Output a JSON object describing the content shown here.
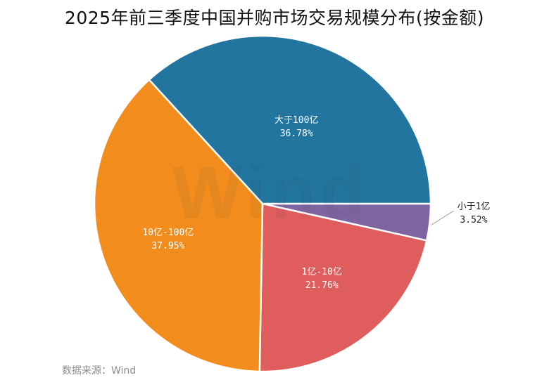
{
  "title": "2025年前三季度中国并购市场交易规模分布(按金额)",
  "source": "数据来源：Wind",
  "watermark": "Wind",
  "chart_data": {
    "type": "pie",
    "title": "2025年前三季度中国并购市场交易规模分布(按金额)",
    "categories": [
      "小于1亿",
      "1亿-10亿",
      "10亿-100亿",
      "大于100亿"
    ],
    "values": [
      3.52,
      21.76,
      37.95,
      36.78
    ],
    "unit": "%",
    "colors": [
      "#7f64a2",
      "#e05d5d",
      "#f28c1c",
      "#21759f"
    ],
    "start_angle": "3 o'clock, clockwise",
    "labels": [
      {
        "name": "小于1亿",
        "value": "3.52%",
        "position": "outside",
        "leader_line": true
      },
      {
        "name": "1亿-10亿",
        "value": "21.76%",
        "position": "inside"
      },
      {
        "name": "10亿-100亿",
        "value": "37.95%",
        "position": "inside"
      },
      {
        "name": "大于100亿",
        "value": "36.78%",
        "position": "inside"
      }
    ],
    "legend": "none",
    "source": "数据来源：Wind"
  }
}
